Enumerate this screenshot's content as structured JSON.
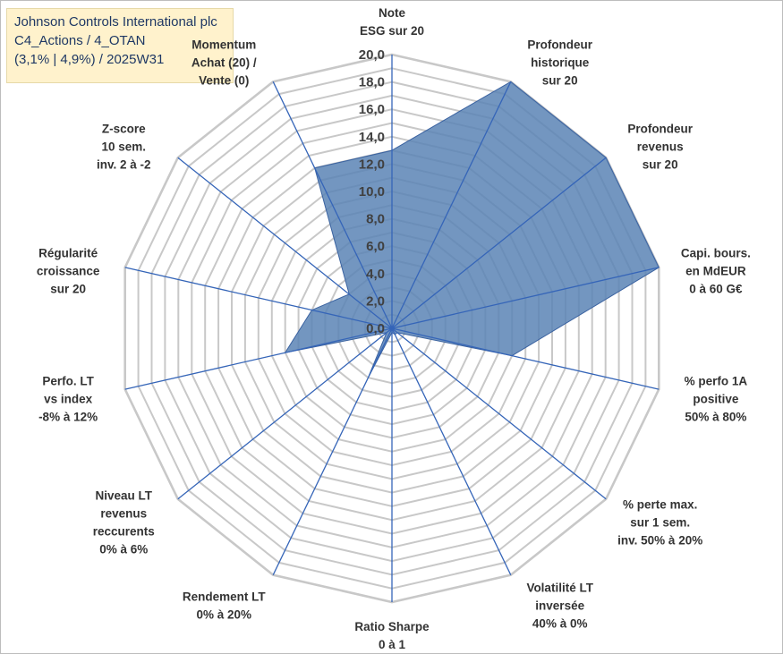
{
  "title": {
    "line1": "Johnson Controls International plc",
    "line2": "C4_Actions / 4_OTAN",
    "line3": "(3,1% | 4,9%) / 2025W31"
  },
  "colors": {
    "fill": "#5b84b5",
    "stroke": "#3a62a0",
    "spoke": "#3565b8",
    "grid": "#c8c8c8",
    "title_bg": "#fff2cc"
  },
  "chart_data": {
    "type": "radar",
    "rmin": 0,
    "rmax": 20,
    "tick_step": 2,
    "tick_labels": [
      "0,0",
      "2,0",
      "4,0",
      "6,0",
      "8,0",
      "10,0",
      "12,0",
      "14,0",
      "16,0",
      "18,0",
      "20,0"
    ],
    "axes": [
      {
        "label": [
          "Note",
          "ESG sur 20"
        ],
        "value": 13.0
      },
      {
        "label": [
          "Profondeur",
          "historique",
          "sur 20"
        ],
        "value": 20.0
      },
      {
        "label": [
          "Profondeur",
          "revenus",
          "sur 20"
        ],
        "value": 20.0
      },
      {
        "label": [
          "Capi. bours.",
          "en MdEUR",
          "0 à 60 G€"
        ],
        "value": 20.0
      },
      {
        "label": [
          "% perfo 1A",
          "positive",
          "50% à 80%"
        ],
        "value": 9.0
      },
      {
        "label": [
          "% perte max.",
          "sur 1 sem.",
          "inv. 50% à 20%"
        ],
        "value": 0.5
      },
      {
        "label": [
          "Volatilité LT",
          "inversée",
          "40% à 0%"
        ],
        "value": 0.5
      },
      {
        "label": [
          "Ratio Sharpe",
          "0 à 1"
        ],
        "value": 0.3
      },
      {
        "label": [
          "Rendement LT",
          "0% à 20%"
        ],
        "value": 4.0
      },
      {
        "label": [
          "Niveau LT",
          "revenus",
          "reccurents",
          "0% à 6%"
        ],
        "value": 0.5
      },
      {
        "label": [
          "Perfo. LT",
          "vs index",
          "-8% à 12%"
        ],
        "value": 8.0
      },
      {
        "label": [
          "Régularité",
          "croissance",
          "sur 20"
        ],
        "value": 6.0
      },
      {
        "label": [
          "Z-score",
          "10 sem.",
          "inv. 2 à -2"
        ],
        "value": 4.0
      },
      {
        "label": [
          "Momentum",
          "Achat (20) /",
          "Vente (0)"
        ],
        "value": 13.0
      }
    ]
  }
}
